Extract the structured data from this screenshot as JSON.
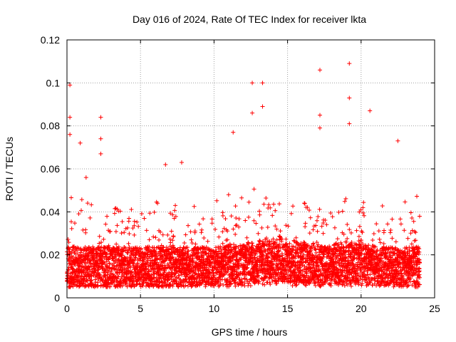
{
  "chart_data": {
    "type": "scatter",
    "title": "Day 016 of 2024, Rate Of TEC Index for receiver lkta",
    "xlabel": "GPS time / hours",
    "ylabel": "ROTI / TECUs",
    "xlim": [
      0,
      25
    ],
    "ylim": [
      0,
      0.12
    ],
    "x_ticks": [
      0,
      5,
      10,
      15,
      20,
      25
    ],
    "x_tick_labels": [
      "0",
      "5",
      "10",
      "15",
      "20",
      "25"
    ],
    "y_ticks": [
      0,
      0.02,
      0.04,
      0.06,
      0.08,
      0.1,
      0.12
    ],
    "y_tick_labels": [
      "0",
      "0.02",
      "0.04",
      "0.06",
      "0.08",
      "0.1",
      "0.12"
    ],
    "grid": true,
    "marker": "+",
    "color": "#ff0000",
    "series": [
      {
        "name": "ROTI",
        "x_range": [
          0,
          24
        ],
        "sampling_interval_hours": 0.05,
        "baseline_band": [
          0.005,
          0.03
        ],
        "noted_spikes": [
          {
            "x": 0.2,
            "y": 0.099
          },
          {
            "x": 0.2,
            "y": 0.084
          },
          {
            "x": 0.2,
            "y": 0.076
          },
          {
            "x": 0.9,
            "y": 0.072
          },
          {
            "x": 1.3,
            "y": 0.056
          },
          {
            "x": 2.3,
            "y": 0.084
          },
          {
            "x": 2.3,
            "y": 0.074
          },
          {
            "x": 2.3,
            "y": 0.067
          },
          {
            "x": 6.7,
            "y": 0.062
          },
          {
            "x": 7.8,
            "y": 0.063
          },
          {
            "x": 11.3,
            "y": 0.077
          },
          {
            "x": 12.6,
            "y": 0.1
          },
          {
            "x": 12.6,
            "y": 0.086
          },
          {
            "x": 13.3,
            "y": 0.1
          },
          {
            "x": 13.3,
            "y": 0.089
          },
          {
            "x": 17.2,
            "y": 0.106
          },
          {
            "x": 17.2,
            "y": 0.085
          },
          {
            "x": 17.2,
            "y": 0.079
          },
          {
            "x": 19.2,
            "y": 0.109
          },
          {
            "x": 19.2,
            "y": 0.093
          },
          {
            "x": 19.2,
            "y": 0.081
          },
          {
            "x": 20.6,
            "y": 0.087
          },
          {
            "x": 22.5,
            "y": 0.073
          }
        ]
      }
    ]
  }
}
